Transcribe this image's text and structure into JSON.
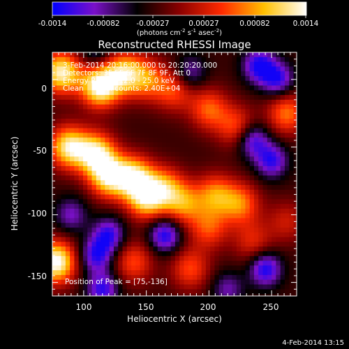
{
  "chart_data": {
    "type": "heatmap",
    "title": "Reconstructed RHESSI Image",
    "colorbar": {
      "ticks": [
        "-0.0014",
        "-0.00082",
        "-0.00027",
        "0.00027",
        "0.00082",
        "0.0014"
      ],
      "range": [
        -0.0014,
        0.0014
      ],
      "unit_parts": [
        "(photons cm",
        "-2",
        " s",
        "-1",
        " asec",
        "-2",
        ")"
      ],
      "colors": [
        "#0000ff",
        "#7a10c8",
        "#000000",
        "#8a0000",
        "#ff2a00",
        "#ffc000",
        "#ffffff"
      ]
    },
    "xlabel": "Heliocentric X (arcsec)",
    "ylabel": "Heliocentric Y (arcsec)",
    "xlim": [
      75,
      270
    ],
    "ylim": [
      -160,
      20
    ],
    "xticks": [
      100,
      150,
      200,
      250
    ],
    "yticks": [
      0,
      -50,
      -100,
      -150
    ],
    "annotations": [
      "3-Feb-2014 20:16:00.000 to 20:20:20.000",
      "Detectors: 3F 5F 6F 7F 8F 9F, Att 0",
      "Energy Range: 12.0 - 25.0 keV",
      "Clean     Total counts: 2.40E+04"
    ],
    "peak_label": "Position of Peak = [75,-136]",
    "hot_regions": [
      {
        "x": 82,
        "y": 5,
        "amp": 0.9
      },
      {
        "x": 113,
        "y": -5,
        "amp": 1.0
      },
      {
        "x": 132,
        "y": 5,
        "amp": 0.7
      },
      {
        "x": 150,
        "y": 0,
        "amp": 0.5
      },
      {
        "x": 172,
        "y": -8,
        "amp": 0.45
      },
      {
        "x": 200,
        "y": -22,
        "amp": 0.5
      },
      {
        "x": 222,
        "y": -35,
        "amp": 0.45
      },
      {
        "x": 88,
        "y": -50,
        "amp": 0.85
      },
      {
        "x": 110,
        "y": -55,
        "amp": 0.85
      },
      {
        "x": 120,
        "y": -72,
        "amp": 0.8
      },
      {
        "x": 140,
        "y": -72,
        "amp": 0.8
      },
      {
        "x": 150,
        "y": -88,
        "amp": 0.75
      },
      {
        "x": 165,
        "y": -80,
        "amp": 0.55
      },
      {
        "x": 180,
        "y": -92,
        "amp": 0.55
      },
      {
        "x": 205,
        "y": -85,
        "amp": 0.55
      },
      {
        "x": 225,
        "y": -92,
        "amp": 0.55
      },
      {
        "x": 200,
        "y": -110,
        "amp": 0.45
      },
      {
        "x": 185,
        "y": -140,
        "amp": 0.45
      },
      {
        "x": 140,
        "y": -135,
        "amp": 0.45
      },
      {
        "x": 235,
        "y": -120,
        "amp": 0.35
      },
      {
        "x": 78,
        "y": -135,
        "amp": 1.0
      },
      {
        "x": 262,
        "y": -25,
        "amp": 0.55
      },
      {
        "x": 262,
        "y": -105,
        "amp": 0.3
      }
    ],
    "cold_regions": [
      {
        "x": 240,
        "y": 10,
        "amp": 0.9
      },
      {
        "x": 255,
        "y": 0,
        "amp": 0.8
      },
      {
        "x": 235,
        "y": -45,
        "amp": 0.8
      },
      {
        "x": 250,
        "y": -60,
        "amp": 0.8
      },
      {
        "x": 245,
        "y": -140,
        "amp": 0.9
      },
      {
        "x": 120,
        "y": -115,
        "amp": 0.8
      },
      {
        "x": 165,
        "y": -115,
        "amp": 0.9
      },
      {
        "x": 110,
        "y": -130,
        "amp": 0.8
      },
      {
        "x": 115,
        "y": -155,
        "amp": 0.8
      },
      {
        "x": 90,
        "y": -100,
        "amp": 0.55
      },
      {
        "x": 185,
        "y": 5,
        "amp": 0.55
      },
      {
        "x": 215,
        "y": -155,
        "amp": 0.5
      },
      {
        "x": 110,
        "y": 20,
        "amp": 0.45
      }
    ]
  },
  "footer_date": "4-Feb-2014 13:15"
}
